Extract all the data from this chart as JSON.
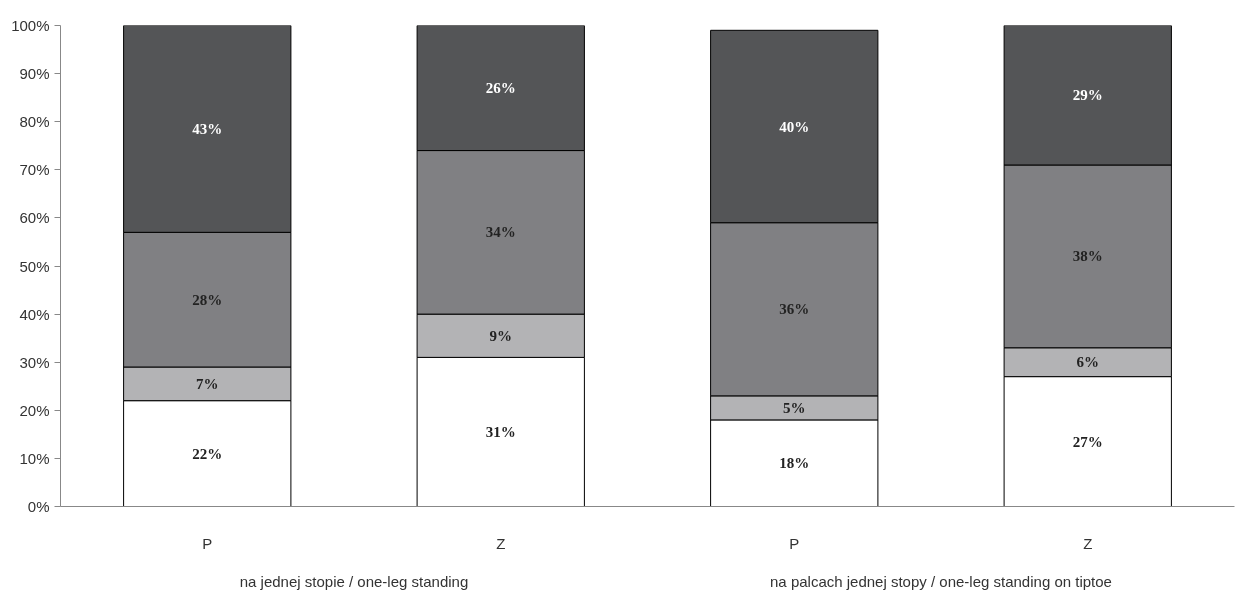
{
  "chart_data": {
    "type": "bar",
    "stacked": true,
    "categories": [
      "P",
      "Z",
      "P",
      "Z"
    ],
    "annotations": [
      "na jednej stopie / one-leg standing",
      "na palcach jednej stopy / one-leg standing on tiptoe"
    ],
    "series": [
      {
        "color": "#ffffff",
        "values": [
          22,
          31,
          18,
          27
        ],
        "value_labels": [
          "22%",
          "31%",
          "18%",
          "27%"
        ]
      },
      {
        "color": "#b3b3b5",
        "values": [
          7,
          9,
          5,
          6
        ],
        "value_labels": [
          "7%",
          "9%",
          "5%",
          "6%"
        ]
      },
      {
        "color": "#808083",
        "values": [
          28,
          34,
          36,
          38
        ],
        "value_labels": [
          "28%",
          "34%",
          "36%",
          "38%"
        ]
      },
      {
        "color": "#545557",
        "values": [
          43,
          26,
          40,
          29
        ],
        "value_labels": [
          "43%",
          "26%",
          "40%",
          "29%"
        ]
      }
    ],
    "ylim": [
      0,
      100
    ],
    "yticks": [
      {
        "value": 0,
        "label": "0%"
      },
      {
        "value": 10,
        "label": "10%"
      },
      {
        "value": 20,
        "label": "20%"
      },
      {
        "value": 30,
        "label": "30%"
      },
      {
        "value": 40,
        "label": "40%"
      },
      {
        "value": 50,
        "label": "50%"
      },
      {
        "value": 60,
        "label": "60%"
      },
      {
        "value": 70,
        "label": "70%"
      },
      {
        "value": 80,
        "label": "80%"
      },
      {
        "value": 90,
        "label": "90%"
      },
      {
        "value": 100,
        "label": "100%"
      }
    ],
    "grid": false
  }
}
